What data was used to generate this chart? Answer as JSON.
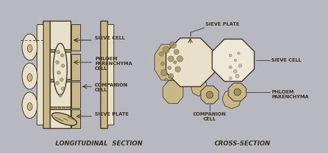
{
  "bg_color": "#b8b8c0",
  "draw_color": "#3a3020",
  "cell_fill_light": "#e8e0c8",
  "cell_fill_mid": "#c8b888",
  "cell_fill_dark": "#a09060",
  "title_left": "LONGITUDINAL  SECTION",
  "title_right": "CROSS-SECTION",
  "labels_long": {
    "sieve_cell": "SIEVE CELL",
    "phloem_parenchyma": "PHLOEM\nPARENCHYMA\nCELL",
    "companion_cell": "COMPANION\nCELL",
    "sieve_plate": "SIEVE PLATE"
  },
  "labels_cross": {
    "sieve_plate": "SIEVE PLATE",
    "sieve_cell": "SIEVE CELL",
    "phloem_parenchyma": "PHLOEM\nPARENCHYMA",
    "companion_cell": "COMPANION\nCELL"
  }
}
